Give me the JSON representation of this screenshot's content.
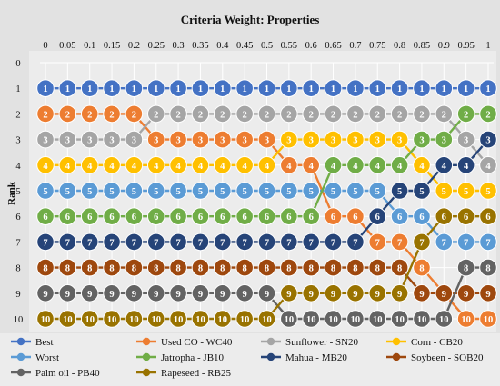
{
  "chart_data": {
    "type": "line",
    "title": "Criteria Weight: Properties",
    "xlabel": "",
    "ylabel": "Rank",
    "x": [
      0,
      0.05,
      0.1,
      0.15,
      0.2,
      0.25,
      0.3,
      0.35,
      0.4,
      0.45,
      0.5,
      0.55,
      0.6,
      0.65,
      0.7,
      0.75,
      0.8,
      0.85,
      0.9,
      0.95,
      1
    ],
    "x_tick_labels": [
      "0",
      "0.05",
      "0.1",
      "0.15",
      "0.2",
      "0.25",
      "0.3",
      "0.35",
      "0.4",
      "0.45",
      "0.5",
      "0.55",
      "0.6",
      "0.65",
      "0.7",
      "0.75",
      "0.8",
      "0.85",
      "0.9",
      "0.95",
      "1"
    ],
    "y_tick_labels": [
      "0",
      "1",
      "2",
      "3",
      "4",
      "5",
      "6",
      "7",
      "8",
      "9",
      "10"
    ],
    "ylim": [
      0,
      10
    ],
    "y_inverted": true,
    "x_axis_position": "top",
    "grid": true,
    "legend_position": "bottom",
    "series": [
      {
        "name": "Best",
        "color": "#4472c4",
        "values": [
          1,
          1,
          1,
          1,
          1,
          1,
          1,
          1,
          1,
          1,
          1,
          1,
          1,
          1,
          1,
          1,
          1,
          1,
          1,
          1,
          1
        ]
      },
      {
        "name": "Used CO - WC40",
        "color": "#ed7d31",
        "values": [
          2,
          2,
          2,
          2,
          2,
          3,
          3,
          3,
          3,
          3,
          3,
          4,
          4,
          6,
          6,
          7,
          7,
          8,
          9,
          10,
          10
        ]
      },
      {
        "name": "Sunflower - SN20",
        "color": "#a5a5a5",
        "values": [
          3,
          3,
          3,
          3,
          3,
          2,
          2,
          2,
          2,
          2,
          2,
          2,
          2,
          2,
          2,
          2,
          2,
          2,
          2,
          3,
          4
        ]
      },
      {
        "name": "Corn - CB20",
        "color": "#ffc000",
        "values": [
          4,
          4,
          4,
          4,
          4,
          4,
          4,
          4,
          4,
          4,
          4,
          3,
          3,
          3,
          3,
          3,
          3,
          4,
          5,
          5,
          5
        ]
      },
      {
        "name": "Worst",
        "color": "#5b9bd5",
        "values": [
          5,
          5,
          5,
          5,
          5,
          5,
          5,
          5,
          5,
          5,
          5,
          5,
          5,
          5,
          5,
          5,
          6,
          6,
          7,
          7,
          7
        ]
      },
      {
        "name": "Jatropha - JB10",
        "color": "#70ad47",
        "values": [
          6,
          6,
          6,
          6,
          6,
          6,
          6,
          6,
          6,
          6,
          6,
          6,
          6,
          4,
          4,
          4,
          4,
          3,
          3,
          2,
          2
        ]
      },
      {
        "name": "Mahua - MB20",
        "color": "#264478",
        "values": [
          7,
          7,
          7,
          7,
          7,
          7,
          7,
          7,
          7,
          7,
          7,
          7,
          7,
          7,
          7,
          6,
          5,
          5,
          4,
          4,
          3
        ]
      },
      {
        "name": "Soybeen - SOB20",
        "color": "#9e480e",
        "values": [
          8,
          8,
          8,
          8,
          8,
          8,
          8,
          8,
          8,
          8,
          8,
          8,
          8,
          8,
          8,
          8,
          8,
          9,
          9,
          9,
          9
        ]
      },
      {
        "name": "Palm oil - PB40",
        "color": "#636363",
        "values": [
          9,
          9,
          9,
          9,
          9,
          9,
          9,
          9,
          9,
          9,
          9,
          10,
          10,
          10,
          10,
          10,
          10,
          10,
          10,
          8,
          8
        ]
      },
      {
        "name": "Rapeseed - RB25",
        "color": "#997300",
        "values": [
          10,
          10,
          10,
          10,
          10,
          10,
          10,
          10,
          10,
          10,
          10,
          9,
          9,
          9,
          9,
          9,
          9,
          7,
          6,
          6,
          6
        ]
      }
    ]
  }
}
